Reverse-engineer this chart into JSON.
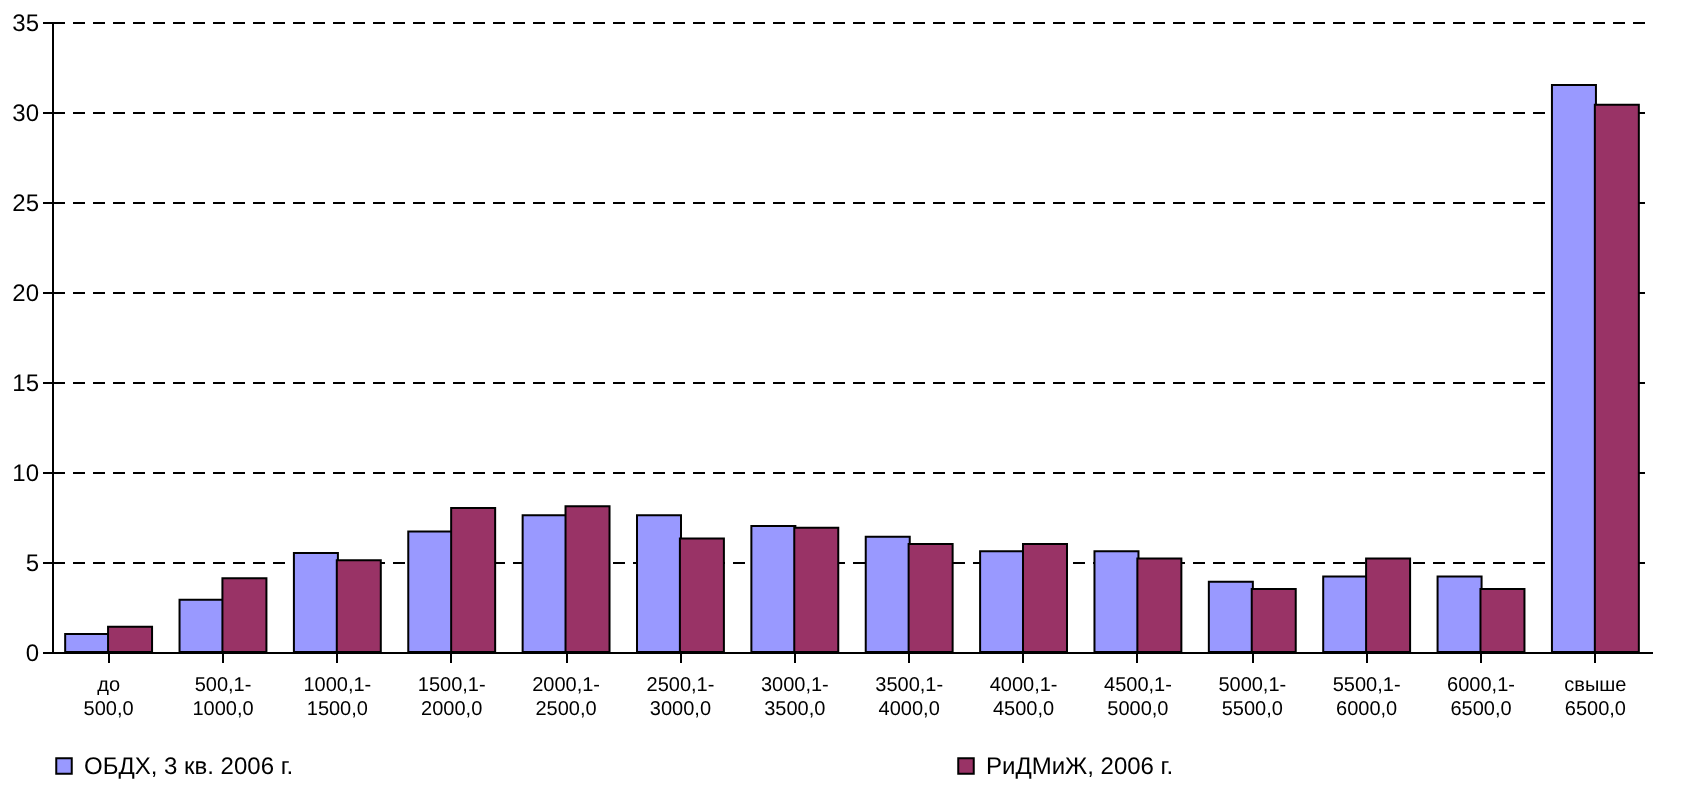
{
  "chart_data": {
    "type": "bar",
    "categories": [
      "до 500,0",
      "500,1- 1000,0",
      "1000,1- 1500,0",
      "1500,1- 2000,0",
      "2000,1- 2500,0",
      "2500,1- 3000,0",
      "3000,1- 3500,0",
      "3500,1- 4000,0",
      "4000,1- 4500,0",
      "4500,1- 5000,0",
      "5000,1- 5500,0",
      "5500,1- 6000,0",
      "6000,1- 6500,0",
      "свыше 6500,0"
    ],
    "series": [
      {
        "name": "ОБДХ, 3 кв. 2006 г.",
        "color": "#9999ff",
        "values": [
          1.0,
          2.9,
          5.5,
          6.7,
          7.6,
          7.6,
          7.0,
          6.4,
          5.6,
          5.6,
          3.9,
          4.2,
          4.2,
          31.5
        ]
      },
      {
        "name": "РиДМиЖ, 2006 г.",
        "color": "#993366",
        "values": [
          1.4,
          4.1,
          5.1,
          8.0,
          8.1,
          6.3,
          6.9,
          6.0,
          6.0,
          5.2,
          3.5,
          5.2,
          3.5,
          30.4
        ]
      }
    ],
    "ylim": [
      0,
      35
    ],
    "yticks": [
      0,
      5,
      10,
      15,
      20,
      25,
      30,
      35
    ],
    "grid": "y",
    "line_style": "dashed",
    "legend": "bottom"
  }
}
